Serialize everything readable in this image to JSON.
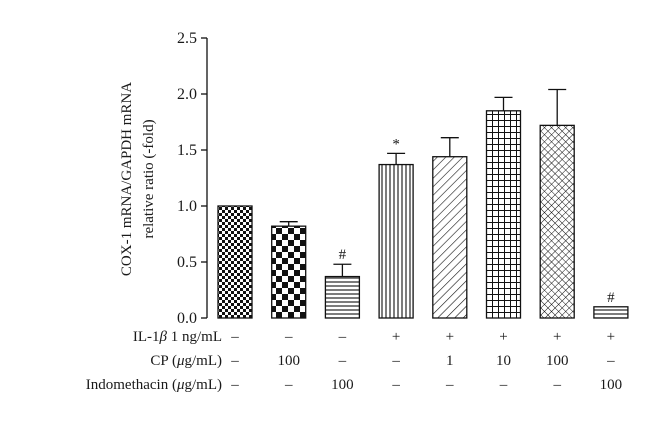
{
  "chart_data": {
    "type": "bar",
    "ylabel_lines": [
      "COX-1 mRNA/GAPDH mRNA",
      "relative ratio (-fold)"
    ],
    "ylim": [
      0,
      2.5
    ],
    "yticks": [
      "0.0",
      "0.5",
      "1.0",
      "1.5",
      "2.0",
      "2.5"
    ],
    "grid": false,
    "values": [
      1.0,
      0.82,
      0.37,
      1.37,
      1.44,
      1.85,
      1.72,
      0.1
    ],
    "errors": [
      0,
      0.04,
      0.11,
      0.1,
      0.17,
      0.12,
      0.32,
      0
    ],
    "annotations": [
      "",
      "",
      "#",
      "*",
      "",
      "",
      "",
      "#"
    ],
    "patterns": [
      "checker-fine",
      "checker-coarse",
      "horizontal",
      "vertical",
      "diagonal",
      "grid",
      "crosshatch",
      "horizontal"
    ],
    "treatment_rows": [
      {
        "label_parts": [
          "IL-1",
          "β",
          " 1 ng/mL"
        ],
        "values": [
          "–",
          "–",
          "–",
          "+",
          "+",
          "+",
          "+",
          "+"
        ]
      },
      {
        "label_parts": [
          "CP (",
          "μ",
          "g/mL)"
        ],
        "values": [
          "–",
          "100",
          "–",
          "–",
          "1",
          "10",
          "100",
          "–"
        ]
      },
      {
        "label_parts": [
          "Indomethacin (",
          "μ",
          "g/mL)"
        ],
        "values": [
          "–",
          "–",
          "100",
          "–",
          "–",
          "–",
          "–",
          "100"
        ]
      }
    ]
  }
}
